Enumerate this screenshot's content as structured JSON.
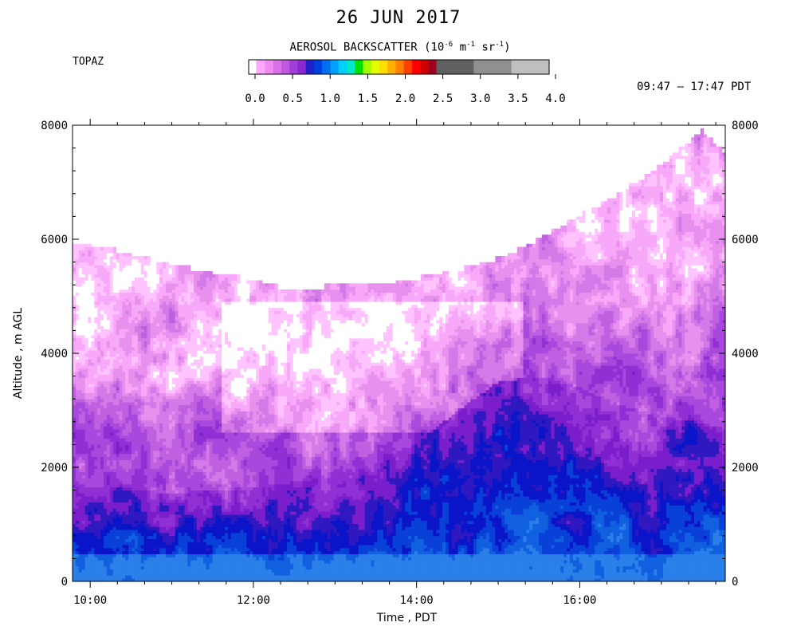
{
  "header": {
    "title": "26 JUN 2017",
    "station": "TOPAZ",
    "time_range": "09:47 – 17:47 PDT"
  },
  "colorbar": {
    "title_main": "AEROSOL BACKSCATTER (10",
    "exp1": "-6",
    "mid1": " m",
    "exp2": "-1",
    "mid2": " sr",
    "exp3": "-1",
    "close": ")",
    "tick_labels": [
      "0.0",
      "0.5",
      "1.0",
      "1.5",
      "2.0",
      "2.5",
      "3.0",
      "3.5",
      "4.0"
    ],
    "colors": [
      "#ffbfff",
      "#ffa6ff",
      "#f08cf0",
      "#d870e8",
      "#c058e0",
      "#a040d8",
      "#8a2ad0",
      "#2020c8",
      "#0040e0",
      "#0070f0",
      "#00a0ff",
      "#00d0ff",
      "#00e8c8",
      "#00e000",
      "#a0ff00",
      "#e0ff00",
      "#ffe000",
      "#ffb000",
      "#ff8000",
      "#ff4000",
      "#ff0000",
      "#d00000",
      "#a00020",
      "#606060",
      "#909090",
      "#c0c0c0"
    ]
  },
  "chart_data": {
    "type": "heatmap",
    "title": "26 JUN 2017",
    "xlabel": "Time , PDT",
    "ylabel": "Altitude , m AGL",
    "xlim": [
      "09:47",
      "17:47"
    ],
    "ylim": [
      0,
      8000
    ],
    "x_tick_labels": [
      "10:00",
      "12:00",
      "14:00",
      "16:00"
    ],
    "x_ticks_hours": [
      10,
      12,
      14,
      16
    ],
    "y_tick_labels": [
      "0",
      "2000",
      "4000",
      "6000",
      "8000"
    ],
    "y_ticks": [
      0,
      2000,
      4000,
      6000,
      8000
    ],
    "value_range": [
      0.0,
      4.0
    ],
    "data_top_profile": {
      "time_hours": [
        9.78,
        10.3,
        11.0,
        11.5,
        12.0,
        12.4,
        12.8,
        13.2,
        13.6,
        14.0,
        14.5,
        15.0,
        15.5,
        16.0,
        16.5,
        17.0,
        17.5,
        17.78
      ],
      "altitude_m": [
        5950,
        5800,
        5550,
        5400,
        5300,
        5100,
        5150,
        5200,
        5200,
        5300,
        5450,
        5650,
        6000,
        6400,
        6800,
        7300,
        7900,
        7500
      ]
    },
    "boundary_layer_top": {
      "time_hours": [
        9.78,
        11.0,
        12.0,
        12.8,
        13.3,
        13.7,
        14.0,
        14.5,
        15.0,
        15.5,
        16.0,
        16.5,
        17.0,
        17.78
      ],
      "altitude_m": [
        1700,
        1550,
        1650,
        1800,
        2200,
        2250,
        2400,
        3000,
        3500,
        3600,
        3400,
        3100,
        2900,
        2700
      ]
    }
  }
}
